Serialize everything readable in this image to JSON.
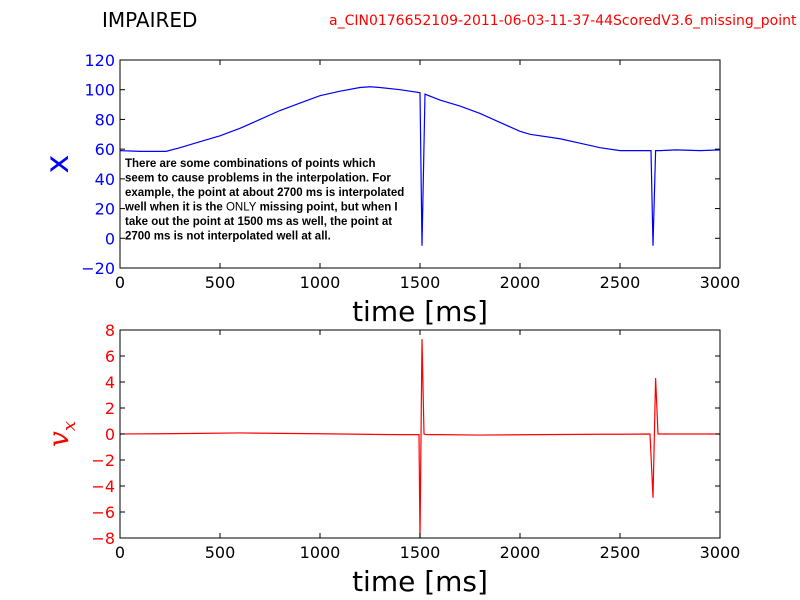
{
  "header": {
    "left_title": "IMPAIRED",
    "right_title": "a_CIN0176652109-2011-06-03-11-37-44ScoredV3.6_missing_point"
  },
  "chart_data": [
    {
      "type": "line",
      "xlabel": "time [ms]",
      "ylabel": "x",
      "xlim": [
        0,
        3000
      ],
      "ylim": [
        -20,
        120
      ],
      "xticks": [
        0,
        500,
        1000,
        1500,
        2000,
        2500,
        3000
      ],
      "yticks": [
        -20,
        0,
        20,
        40,
        60,
        80,
        100,
        120
      ],
      "grid": false,
      "axis_color": "#0000ff",
      "series": [
        {
          "color": "#0000ff",
          "x": [
            0,
            100,
            230,
            300,
            400,
            500,
            600,
            700,
            800,
            900,
            1000,
            1100,
            1200,
            1250,
            1300,
            1400,
            1500,
            1510,
            1525,
            1600,
            1700,
            1800,
            1900,
            2000,
            2050,
            2200,
            2300,
            2400,
            2500,
            2655,
            2665,
            2678,
            2700,
            2780,
            2900,
            3000
          ],
          "y": [
            59,
            58.5,
            58.5,
            61,
            65,
            69,
            74,
            80,
            86,
            91,
            96,
            99,
            101.5,
            102,
            101.5,
            100,
            98,
            -5,
            97,
            93,
            89,
            84,
            78,
            72,
            70,
            67,
            64,
            61,
            59,
            59,
            -5,
            59,
            59,
            59.5,
            59,
            59.5
          ]
        }
      ],
      "annotation": {
        "lines": [
          "There are some combinations of points which",
          "seem to cause problems in the interpolation. For",
          "example, the point at about 2700 ms is interpolated",
          "well when it is the ",
          "take out the point at 1500 ms as well, the point at",
          "2700 ms is not interpolated well at all."
        ],
        "line4_plain": "ONLY",
        "line4_rest": " missing point, but when I"
      }
    },
    {
      "type": "line",
      "xlabel": "time [ms]",
      "ylabel": "v_x",
      "xlim": [
        0,
        3000
      ],
      "ylim": [
        -8,
        8
      ],
      "xticks": [
        0,
        500,
        1000,
        1500,
        2000,
        2500,
        3000
      ],
      "yticks": [
        -8,
        -6,
        -4,
        -2,
        0,
        2,
        4,
        6,
        8
      ],
      "grid": false,
      "axis_color": "#ff0000",
      "series": [
        {
          "color": "#ff0000",
          "x": [
            0,
            200,
            400,
            600,
            800,
            1000,
            1200,
            1400,
            1495,
            1500,
            1510,
            1520,
            1535,
            1600,
            1800,
            2000,
            2200,
            2400,
            2500,
            2650,
            2665,
            2678,
            2690,
            2800,
            3000
          ],
          "y": [
            0,
            0.02,
            0.05,
            0.08,
            0.05,
            0.02,
            -0.02,
            -0.05,
            -0.05,
            -8,
            7.3,
            0,
            -0.05,
            -0.05,
            -0.08,
            -0.06,
            -0.04,
            -0.02,
            -0.02,
            0,
            -4.9,
            4.3,
            0,
            0,
            0
          ]
        }
      ]
    }
  ]
}
